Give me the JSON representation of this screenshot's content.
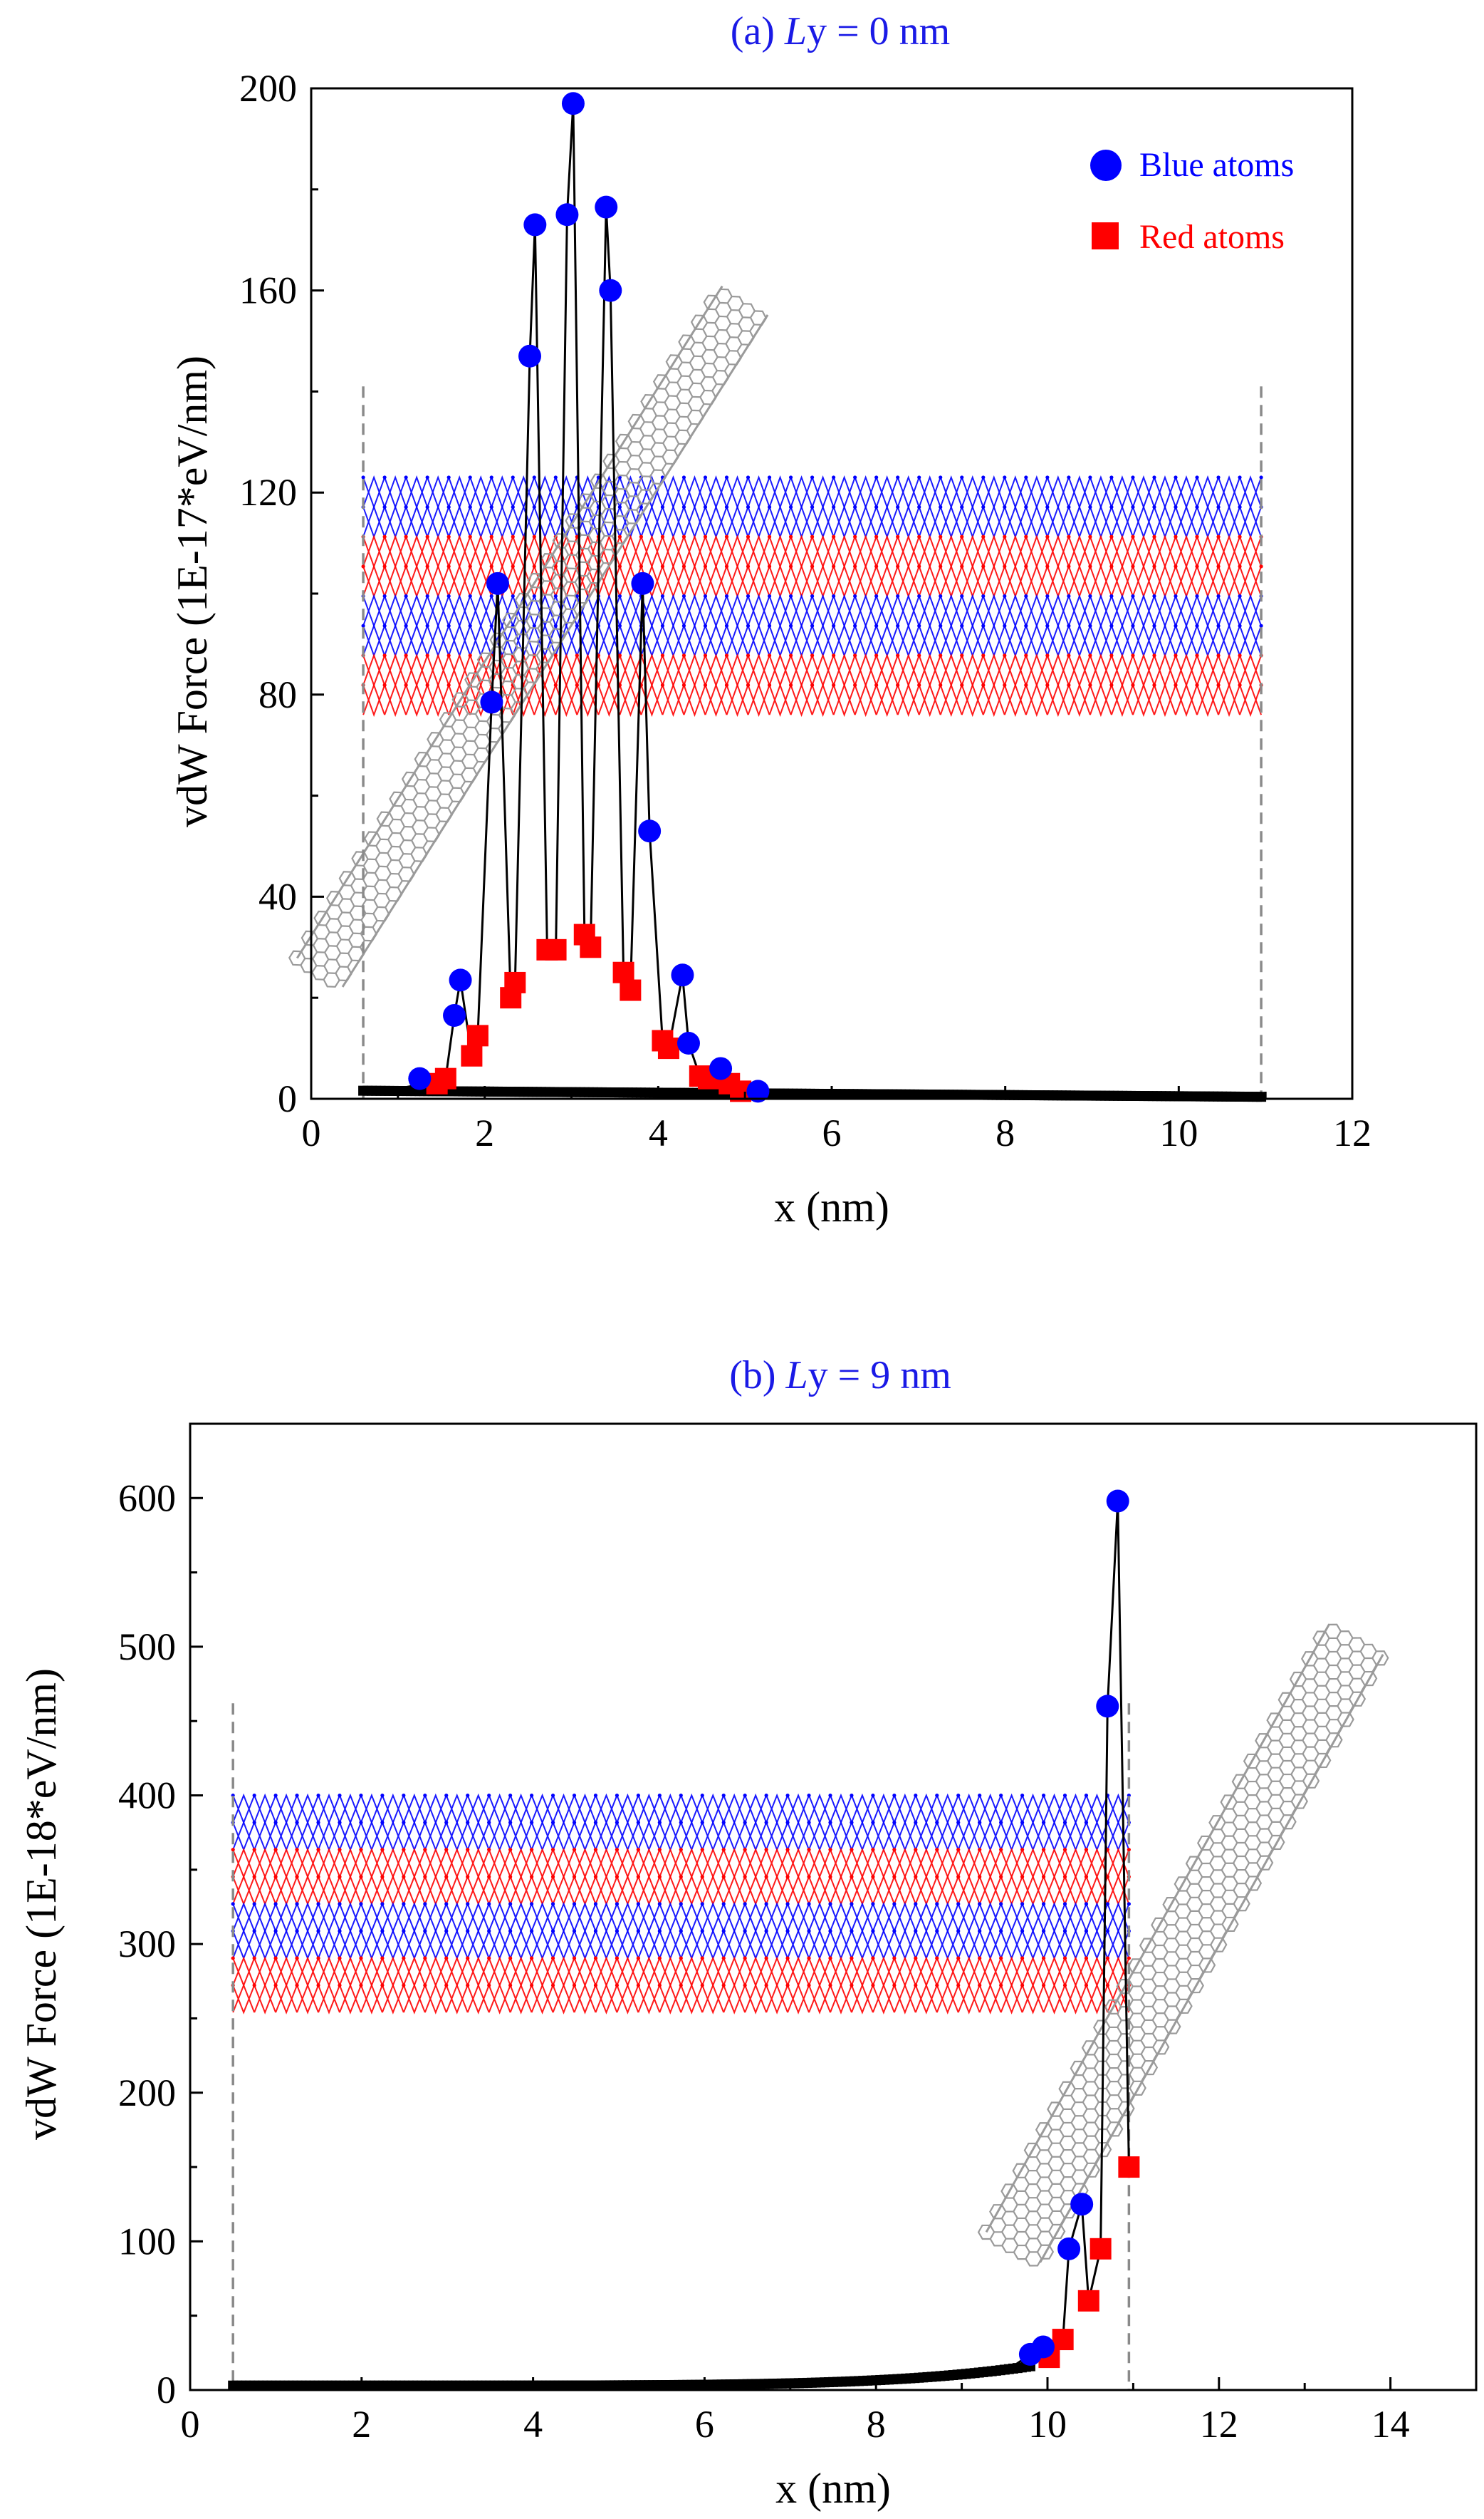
{
  "colors": {
    "blue": "#0000ff",
    "red": "#ff0000",
    "black": "#000000",
    "title": "#1a1ae6",
    "tube": "#9a9a9a",
    "dash": "#8a8a8a"
  },
  "legend": {
    "blue_label": "Blue atoms",
    "red_label": "Red atoms"
  },
  "chart_data": [
    {
      "id": "a",
      "type": "scatter",
      "title_prefix": "(a) ",
      "title_italic": "L",
      "title_suffix": "y = 0 nm",
      "xlabel": "x (nm)",
      "ylabel": "vdW Force (1E-17*eV/nm)",
      "xlim": [
        0,
        12
      ],
      "ylim": [
        0,
        200
      ],
      "xticks": [
        0,
        2,
        4,
        6,
        8,
        10,
        12
      ],
      "yticks": [
        0,
        40,
        80,
        120,
        160,
        200
      ],
      "xminor": 1,
      "yminor": 20,
      "legend_position": "top-right",
      "dashed_lines_x": [
        0.6,
        10.95
      ],
      "dashed_top": 141,
      "flake_x": [
        0.6,
        10.95
      ],
      "flake_y": [
        76,
        123
      ],
      "flake_rows": 8,
      "flake_cols": 42,
      "tube_line": [
        [
          0.1,
          25
        ],
        [
          5.0,
          158
        ]
      ],
      "tube_width": 0.62,
      "line_x": [
        0.6,
        0.8,
        1.0,
        1.15,
        1.25,
        1.35,
        1.45,
        1.55,
        1.65,
        1.72,
        1.85,
        1.92,
        2.08,
        2.15,
        2.3,
        2.35,
        2.52,
        2.58,
        2.72,
        2.82,
        2.95,
        3.02,
        3.15,
        3.22,
        3.4,
        3.45,
        3.6,
        3.68,
        3.82,
        3.9,
        4.05,
        4.12,
        4.28,
        4.35,
        4.48,
        4.58,
        4.72,
        4.82,
        4.95,
        5.05,
        5.15,
        5.5,
        6.0,
        7.0,
        8.0,
        9.0,
        10.0,
        10.95
      ],
      "line_y": [
        1.5,
        1.5,
        2.0,
        2.5,
        4,
        3.5,
        3,
        4,
        16.5,
        23.5,
        8.5,
        12.5,
        78.5,
        102,
        20,
        23,
        147,
        173,
        29.5,
        29.5,
        175,
        197,
        32.5,
        30,
        176.5,
        160,
        25,
        21.5,
        102,
        53,
        11.5,
        10,
        24.5,
        11,
        4.5,
        4,
        6,
        3,
        1.5,
        1.5,
        1.5,
        1.5,
        1.5,
        1,
        0.8,
        0.8,
        0.6,
        0.5
      ],
      "blue_points": [
        [
          1.25,
          4
        ],
        [
          1.65,
          16.5
        ],
        [
          1.72,
          23.5
        ],
        [
          2.08,
          78.5
        ],
        [
          2.15,
          102
        ],
        [
          2.52,
          147
        ],
        [
          2.58,
          173
        ],
        [
          2.95,
          175
        ],
        [
          3.02,
          197
        ],
        [
          3.4,
          176.5
        ],
        [
          3.45,
          160
        ],
        [
          3.82,
          102
        ],
        [
          3.9,
          53
        ],
        [
          4.28,
          24.5
        ],
        [
          4.35,
          11
        ],
        [
          4.72,
          6
        ],
        [
          5.15,
          1.5
        ]
      ],
      "red_points": [
        [
          1.45,
          3
        ],
        [
          1.55,
          4
        ],
        [
          1.85,
          8.5
        ],
        [
          1.92,
          12.5
        ],
        [
          2.3,
          20
        ],
        [
          2.35,
          23
        ],
        [
          2.72,
          29.5
        ],
        [
          2.82,
          29.5
        ],
        [
          3.15,
          32.5
        ],
        [
          3.22,
          30
        ],
        [
          3.6,
          25
        ],
        [
          3.68,
          21.5
        ],
        [
          4.05,
          11.5
        ],
        [
          4.12,
          10
        ],
        [
          4.48,
          4.5
        ],
        [
          4.58,
          4
        ],
        [
          4.82,
          3
        ],
        [
          4.95,
          1.5
        ]
      ],
      "black_range": [
        0.6,
        10.95
      ],
      "black_level_start": 1.6,
      "black_level_end": 0.4,
      "black_step": 0.05
    },
    {
      "id": "b",
      "type": "scatter",
      "title_prefix": "(b) ",
      "title_italic": "L",
      "title_suffix": "y = 9 nm",
      "xlabel": "x (nm)",
      "ylabel": "vdW Force (1E-18*eV/nm)",
      "xlim": [
        0,
        15
      ],
      "ylim": [
        0,
        650
      ],
      "xticks": [
        0,
        2,
        4,
        6,
        8,
        10,
        12,
        14
      ],
      "yticks": [
        0,
        100,
        200,
        300,
        400,
        500,
        600
      ],
      "xminor": 1,
      "yminor": 50,
      "legend_position": "none",
      "dashed_lines_x": [
        0.5,
        10.95
      ],
      "dashed_top": 462,
      "flake_x": [
        0.5,
        10.95
      ],
      "flake_y": [
        254,
        400
      ],
      "flake_rows": 8,
      "flake_cols": 42,
      "tube_line": [
        [
          9.6,
          96
        ],
        [
          13.6,
          505
        ]
      ],
      "tube_width": 0.72,
      "line_x": [
        0.5,
        2,
        4,
        6,
        7,
        8,
        8.5,
        9,
        9.3,
        9.6,
        9.8,
        9.95,
        10.02,
        10.18,
        10.25,
        10.4,
        10.48,
        10.62,
        10.7,
        10.82,
        10.95
      ],
      "line_y": [
        3,
        3,
        3,
        4,
        5,
        6,
        8,
        10,
        13,
        16,
        24,
        29,
        22,
        34,
        95,
        125,
        60,
        95,
        460,
        598,
        150
      ],
      "blue_points": [
        [
          9.8,
          24
        ],
        [
          9.95,
          29
        ],
        [
          10.25,
          95
        ],
        [
          10.4,
          125
        ],
        [
          10.7,
          460
        ],
        [
          10.82,
          598
        ]
      ],
      "red_points": [
        [
          10.02,
          22
        ],
        [
          10.18,
          34
        ],
        [
          10.48,
          60
        ],
        [
          10.62,
          95
        ],
        [
          10.95,
          150
        ]
      ],
      "black_range": [
        0.5,
        9.8
      ],
      "black_level_start": 3,
      "black_level_end": 16,
      "black_step": 0.05
    }
  ]
}
